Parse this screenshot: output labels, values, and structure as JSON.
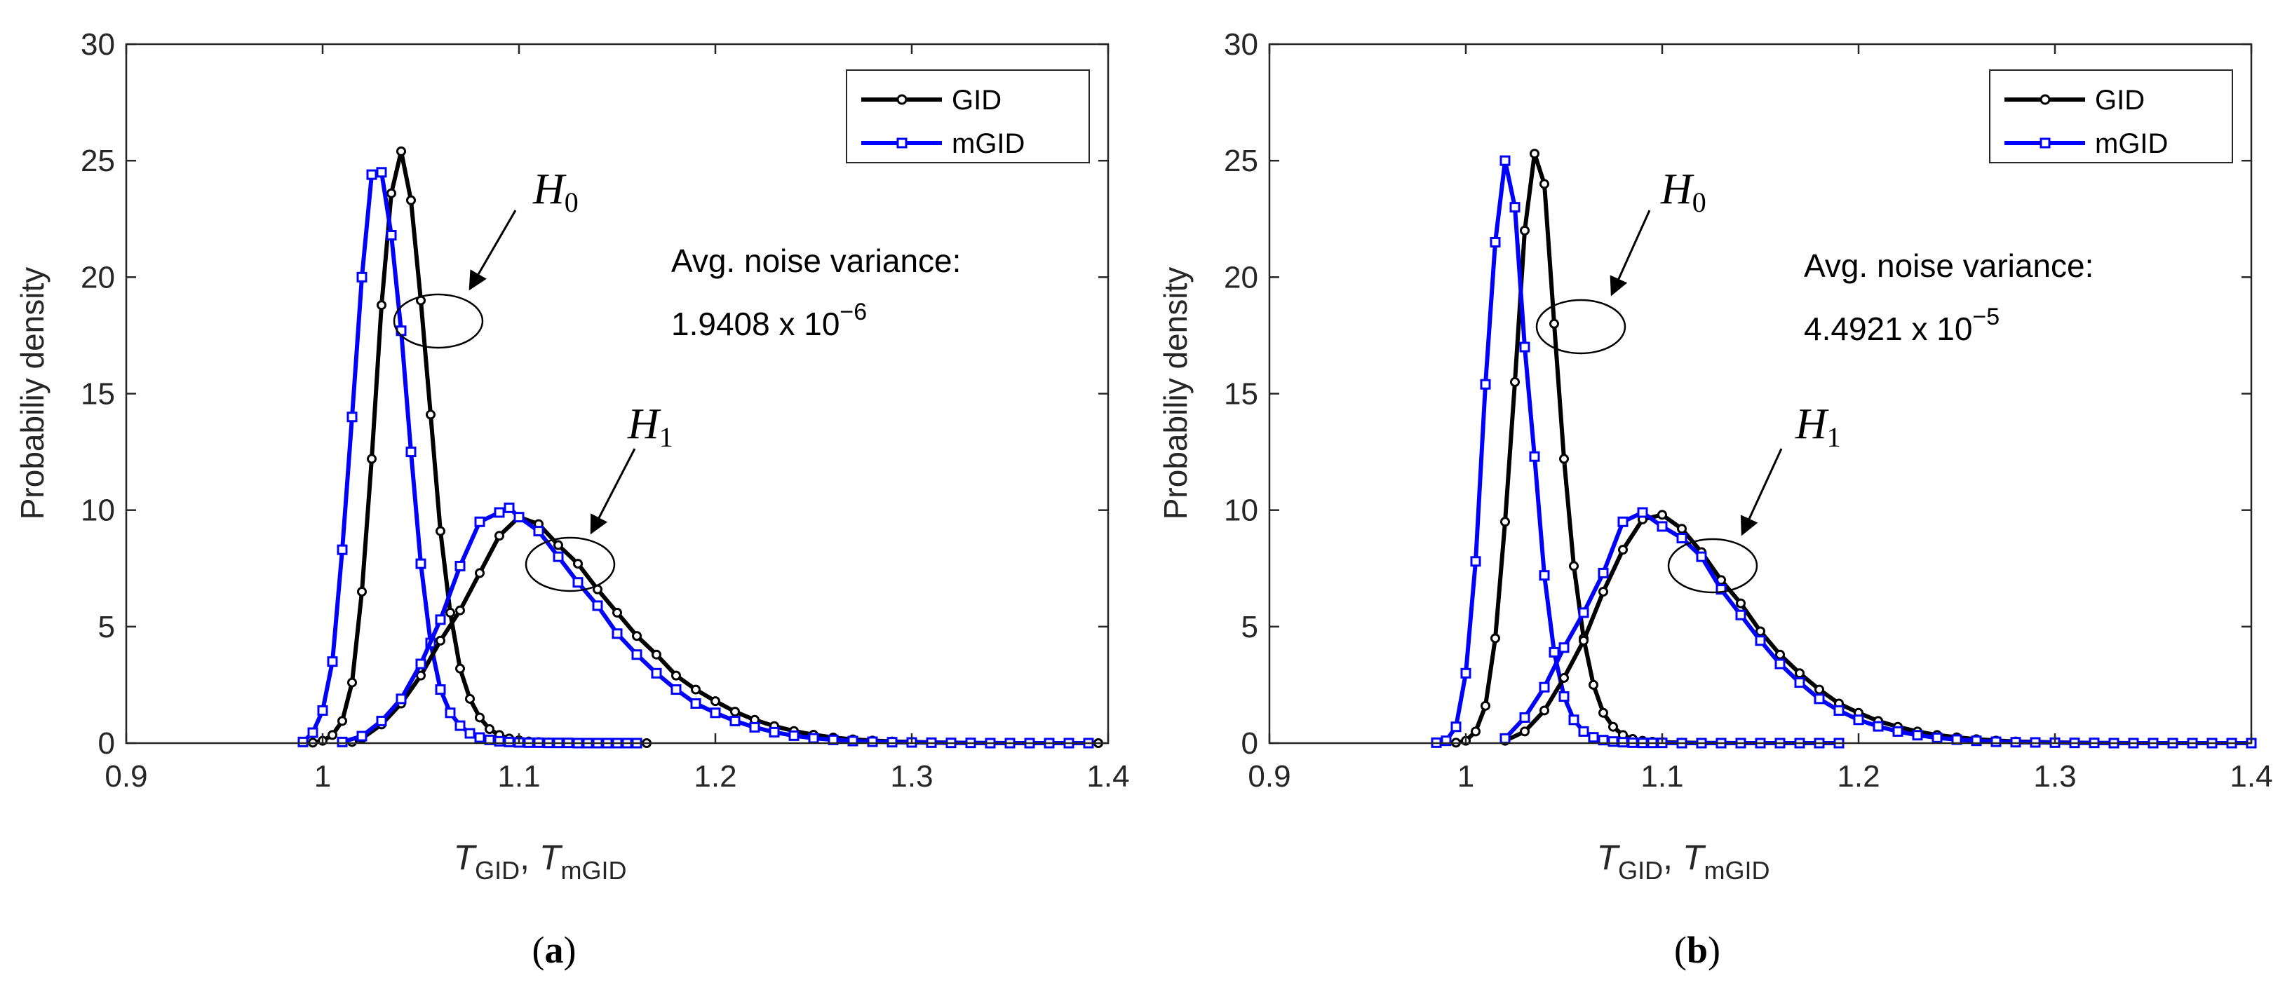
{
  "chart_data": [
    {
      "type": "line",
      "caption": "(a)",
      "caption_letter": "a",
      "xlabel": {
        "T1": "T",
        "sub1": "GID",
        "sep": ", ",
        "T2": "T",
        "sub2": "mGID"
      },
      "ylabel": "Probabiliy density",
      "xlim": [
        0.9,
        1.4
      ],
      "ylim": [
        0,
        30
      ],
      "xticks": [
        "0.9",
        "1",
        "1.1",
        "1.2",
        "1.3",
        "1.4"
      ],
      "yticks": [
        "0",
        "5",
        "10",
        "15",
        "20",
        "25",
        "30"
      ],
      "legend": {
        "position": "top-right",
        "entries": [
          "GID",
          "mGID"
        ]
      },
      "annotation": {
        "line1": "Avg. noise variance:",
        "mantissa": "1.9408 x 10",
        "exponent": "−6"
      },
      "h0_label": {
        "script": "H",
        "sub": "0"
      },
      "h1_label": {
        "script": "H",
        "sub": "1"
      },
      "series": [
        {
          "name": "GID",
          "color": "#000000",
          "marker": "circle",
          "x": [
            0.995,
            1.0,
            1.005,
            1.01,
            1.015,
            1.02,
            1.025,
            1.03,
            1.035,
            1.04,
            1.045,
            1.05,
            1.055,
            1.06,
            1.065,
            1.07,
            1.075,
            1.08,
            1.085,
            1.09,
            1.095,
            1.1,
            1.105,
            1.11,
            1.115,
            1.12,
            1.125,
            1.13,
            1.135,
            1.14,
            1.145,
            1.15,
            1.155,
            1.16,
            1.165
          ],
          "y": [
            0.02,
            0.1,
            0.35,
            0.95,
            2.6,
            6.5,
            12.2,
            18.8,
            23.6,
            25.4,
            23.3,
            19.0,
            14.1,
            9.1,
            5.6,
            3.2,
            1.9,
            1.1,
            0.6,
            0.35,
            0.2,
            0.12,
            0.07,
            0.05,
            0.03,
            0.02,
            0.02,
            0.01,
            0.01,
            0.01,
            0.01,
            0.0,
            0.0,
            0.0,
            0.0
          ]
        },
        {
          "name": "mGID",
          "color": "#0000ff",
          "marker": "square",
          "x": [
            0.99,
            0.995,
            1.0,
            1.005,
            1.01,
            1.015,
            1.02,
            1.025,
            1.03,
            1.035,
            1.04,
            1.045,
            1.05,
            1.055,
            1.06,
            1.065,
            1.07,
            1.075,
            1.08,
            1.085,
            1.09,
            1.095,
            1.1,
            1.105,
            1.11,
            1.115,
            1.12,
            1.125,
            1.13,
            1.135,
            1.14,
            1.145,
            1.15,
            1.155,
            1.16
          ],
          "y": [
            0.05,
            0.45,
            1.4,
            3.5,
            8.3,
            14.0,
            20.0,
            24.4,
            24.5,
            21.8,
            17.7,
            12.5,
            7.7,
            4.3,
            2.3,
            1.3,
            0.75,
            0.42,
            0.24,
            0.14,
            0.08,
            0.05,
            0.03,
            0.02,
            0.02,
            0.01,
            0.01,
            0.01,
            0.0,
            0.0,
            0.0,
            0.0,
            0.0,
            0.0,
            0.0
          ]
        },
        {
          "name": "GID",
          "color": "#000000",
          "marker": "circle",
          "x": [
            1.015,
            1.02,
            1.03,
            1.04,
            1.05,
            1.06,
            1.07,
            1.08,
            1.09,
            1.1,
            1.11,
            1.12,
            1.13,
            1.14,
            1.15,
            1.16,
            1.17,
            1.18,
            1.19,
            1.2,
            1.21,
            1.22,
            1.23,
            1.24,
            1.25,
            1.26,
            1.27,
            1.28,
            1.29,
            1.3,
            1.31,
            1.32,
            1.33,
            1.34,
            1.35,
            1.36,
            1.37,
            1.38,
            1.39,
            1.395
          ],
          "y": [
            0.05,
            0.2,
            0.8,
            1.7,
            2.9,
            4.4,
            5.7,
            7.3,
            8.9,
            9.7,
            9.4,
            8.5,
            7.7,
            6.6,
            5.6,
            4.6,
            3.8,
            2.9,
            2.3,
            1.8,
            1.35,
            1.0,
            0.73,
            0.52,
            0.36,
            0.24,
            0.16,
            0.11,
            0.07,
            0.05,
            0.03,
            0.02,
            0.01,
            0.01,
            0.0,
            0.0,
            0.0,
            0.0,
            0.0,
            0.0
          ]
        },
        {
          "name": "mGID",
          "color": "#0000ff",
          "marker": "square",
          "x": [
            1.01,
            1.02,
            1.03,
            1.04,
            1.05,
            1.06,
            1.07,
            1.08,
            1.09,
            1.095,
            1.1,
            1.11,
            1.12,
            1.13,
            1.14,
            1.15,
            1.16,
            1.17,
            1.18,
            1.19,
            1.2,
            1.21,
            1.22,
            1.23,
            1.24,
            1.25,
            1.26,
            1.27,
            1.28,
            1.29,
            1.3,
            1.31,
            1.32,
            1.33,
            1.34,
            1.35,
            1.36,
            1.37,
            1.38,
            1.39
          ],
          "y": [
            0.05,
            0.3,
            0.95,
            1.9,
            3.4,
            5.3,
            7.6,
            9.5,
            9.9,
            10.1,
            9.7,
            9.1,
            8.0,
            6.9,
            5.9,
            4.7,
            3.8,
            3.0,
            2.3,
            1.7,
            1.3,
            0.95,
            0.68,
            0.47,
            0.32,
            0.21,
            0.14,
            0.09,
            0.06,
            0.04,
            0.03,
            0.02,
            0.01,
            0.01,
            0.0,
            0.0,
            0.0,
            0.0,
            0.0,
            0.0
          ]
        }
      ]
    },
    {
      "type": "line",
      "caption": "(b)",
      "caption_letter": "b",
      "xlabel": {
        "T1": "T",
        "sub1": "GID",
        "sep": ", ",
        "T2": "T",
        "sub2": "mGID"
      },
      "ylabel": "Probabiliy density",
      "xlim": [
        0.9,
        1.4
      ],
      "ylim": [
        0,
        30
      ],
      "xticks": [
        "0.9",
        "1",
        "1.1",
        "1.2",
        "1.3",
        "1.4"
      ],
      "yticks": [
        "0",
        "5",
        "10",
        "15",
        "20",
        "25",
        "30"
      ],
      "legend": {
        "position": "top-right",
        "entries": [
          "GID",
          "mGID"
        ]
      },
      "annotation": {
        "line1": "Avg. noise variance:",
        "mantissa": "4.4921 x 10",
        "exponent": "−5"
      },
      "h0_label": {
        "script": "H",
        "sub": "0"
      },
      "h1_label": {
        "script": "H",
        "sub": "1"
      },
      "series": [
        {
          "name": "GID",
          "color": "#000000",
          "marker": "circle",
          "x": [
            0.995,
            1.0,
            1.005,
            1.01,
            1.015,
            1.02,
            1.025,
            1.03,
            1.035,
            1.04,
            1.045,
            1.05,
            1.055,
            1.06,
            1.065,
            1.07,
            1.075,
            1.08,
            1.085,
            1.09,
            1.095,
            1.1,
            1.11,
            1.12,
            1.13,
            1.14,
            1.15,
            1.16,
            1.17,
            1.18,
            1.19
          ],
          "y": [
            0.02,
            0.1,
            0.5,
            1.6,
            4.5,
            9.5,
            15.5,
            22.0,
            25.3,
            24.0,
            18.0,
            12.2,
            7.6,
            4.5,
            2.5,
            1.3,
            0.7,
            0.35,
            0.18,
            0.1,
            0.06,
            0.04,
            0.02,
            0.01,
            0.01,
            0.0,
            0.0,
            0.0,
            0.0,
            0.0,
            0.0
          ]
        },
        {
          "name": "mGID",
          "color": "#0000ff",
          "marker": "square",
          "x": [
            0.985,
            0.99,
            0.995,
            1.0,
            1.005,
            1.01,
            1.015,
            1.02,
            1.025,
            1.03,
            1.035,
            1.04,
            1.045,
            1.05,
            1.055,
            1.06,
            1.065,
            1.07,
            1.075,
            1.08,
            1.085,
            1.09,
            1.095,
            1.1,
            1.11,
            1.12,
            1.13,
            1.14,
            1.15,
            1.16,
            1.17,
            1.18,
            1.19
          ],
          "y": [
            0.02,
            0.1,
            0.7,
            3.0,
            7.8,
            15.4,
            21.5,
            25.0,
            23.0,
            17.0,
            12.3,
            7.2,
            3.9,
            2.0,
            1.0,
            0.5,
            0.25,
            0.13,
            0.07,
            0.04,
            0.02,
            0.01,
            0.01,
            0.01,
            0.0,
            0.0,
            0.0,
            0.0,
            0.0,
            0.0,
            0.0,
            0.0,
            0.0
          ]
        },
        {
          "name": "GID",
          "color": "#000000",
          "marker": "circle",
          "x": [
            1.02,
            1.03,
            1.04,
            1.05,
            1.06,
            1.07,
            1.08,
            1.09,
            1.1,
            1.11,
            1.12,
            1.13,
            1.14,
            1.15,
            1.16,
            1.17,
            1.18,
            1.19,
            1.2,
            1.21,
            1.22,
            1.23,
            1.24,
            1.25,
            1.26,
            1.27,
            1.28,
            1.29,
            1.3,
            1.31,
            1.32,
            1.33,
            1.34,
            1.35,
            1.36,
            1.37,
            1.38,
            1.39
          ],
          "y": [
            0.1,
            0.5,
            1.4,
            2.8,
            4.4,
            6.5,
            8.3,
            9.6,
            9.8,
            9.2,
            8.2,
            7.0,
            6.0,
            4.8,
            3.8,
            3.0,
            2.3,
            1.7,
            1.3,
            0.95,
            0.7,
            0.5,
            0.35,
            0.25,
            0.17,
            0.11,
            0.07,
            0.05,
            0.03,
            0.02,
            0.01,
            0.01,
            0.0,
            0.0,
            0.0,
            0.0,
            0.0,
            0.0
          ]
        },
        {
          "name": "mGID",
          "color": "#0000ff",
          "marker": "square",
          "x": [
            1.02,
            1.03,
            1.04,
            1.05,
            1.06,
            1.07,
            1.08,
            1.09,
            1.1,
            1.11,
            1.12,
            1.13,
            1.14,
            1.15,
            1.16,
            1.17,
            1.18,
            1.19,
            1.2,
            1.21,
            1.22,
            1.23,
            1.24,
            1.25,
            1.26,
            1.27,
            1.28,
            1.29,
            1.3,
            1.31,
            1.32,
            1.33,
            1.34,
            1.35,
            1.36,
            1.37,
            1.38,
            1.39,
            1.4
          ],
          "y": [
            0.2,
            1.1,
            2.4,
            4.1,
            5.6,
            7.3,
            9.5,
            9.9,
            9.3,
            8.8,
            8.0,
            6.6,
            5.5,
            4.4,
            3.4,
            2.6,
            1.9,
            1.4,
            1.0,
            0.72,
            0.5,
            0.34,
            0.23,
            0.15,
            0.1,
            0.06,
            0.04,
            0.03,
            0.02,
            0.01,
            0.01,
            0.0,
            0.0,
            0.0,
            0.0,
            0.0,
            0.0,
            0.0,
            0.0
          ]
        }
      ]
    }
  ]
}
